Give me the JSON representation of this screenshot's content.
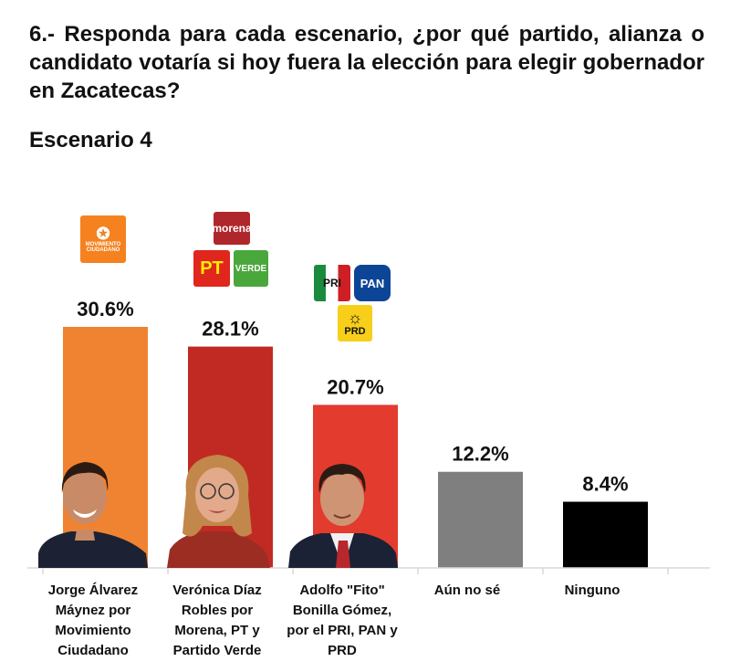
{
  "question": "6.- Responda para cada escenario, ¿por qué partido, alianza o candidato votaría si hoy fuera la elección para elegir gobernador en Zacatecas?",
  "subtitle": "Escenario 4",
  "logos": {
    "mc": {
      "text": "MOVIMIENTO CIUDADANO",
      "color": "#f5811f"
    },
    "morena": {
      "text": "morena",
      "color": "#b0272b"
    },
    "pt": {
      "text": "PT",
      "color": "#e0261d"
    },
    "verde": {
      "text": "VERDE",
      "color": "#4aa73c"
    },
    "pri": {
      "text": "PRI",
      "color": "#ce1f26"
    },
    "pan": {
      "text": "PAN",
      "color": "#0d4596"
    },
    "prd": {
      "text": "PRD",
      "color": "#f7cf1a"
    }
  },
  "chart_data": {
    "type": "bar",
    "categories": [
      "Jorge Álvarez Máynez por Movimiento Ciudadano",
      "Verónica Díaz Robles por Morena, PT y Partido Verde",
      "Adolfo \"Fito\" Bonilla Gómez, por el PRI, PAN y PRD",
      "Aún no sé",
      "Ninguno"
    ],
    "values": [
      30.6,
      28.1,
      20.7,
      12.2,
      8.4
    ],
    "labels": [
      "30.6%",
      "28.1%",
      "20.7%",
      "12.2%",
      "8.4%"
    ],
    "colors": [
      "#f08331",
      "#c12a22",
      "#e33b2e",
      "#7f7f7f",
      "#000000"
    ],
    "title": "Escenario 4",
    "xlabel": "",
    "ylabel": "",
    "ylim": [
      0,
      30.6
    ],
    "grid": false
  }
}
